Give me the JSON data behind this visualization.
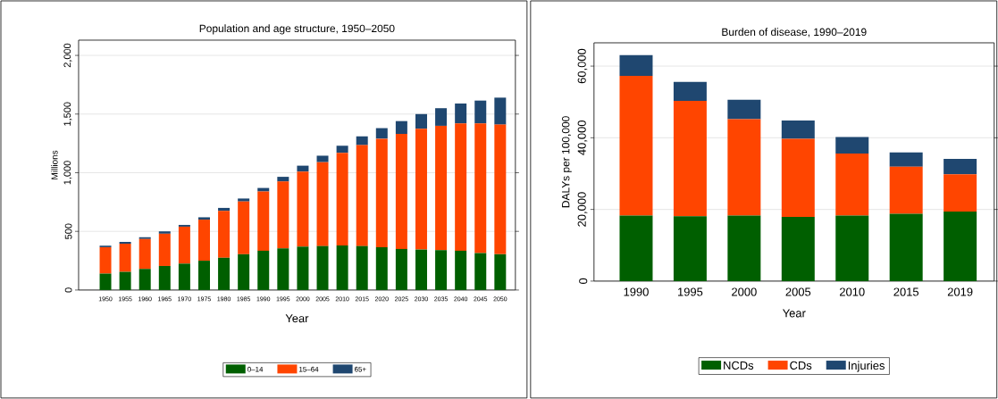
{
  "chart_data": [
    {
      "type": "bar",
      "title": "Population and age structure, 1950–2050",
      "xlabel": "Year",
      "ylabel": "Millions",
      "stacked": true,
      "grid": "y",
      "legend": "bottom",
      "categories": [
        "1950",
        "1955",
        "1960",
        "1965",
        "1970",
        "1975",
        "1980",
        "1985",
        "1990",
        "1995",
        "2000",
        "2005",
        "2010",
        "2015",
        "2020",
        "2025",
        "2030",
        "2035",
        "2040",
        "2045",
        "2050"
      ],
      "ylim": [
        0,
        2130
      ],
      "yticks": [
        0,
        500,
        {
          "value": 1000,
          "label": "1,000"
        },
        {
          "value": 1500,
          "label": "1,500"
        },
        {
          "value": 2000,
          "label": "2,000"
        }
      ],
      "series": [
        {
          "name": "0–14",
          "color": "#005f00",
          "values": [
            140,
            155,
            180,
            205,
            225,
            250,
            275,
            305,
            335,
            355,
            370,
            375,
            380,
            375,
            365,
            350,
            345,
            340,
            335,
            315,
            305
          ]
        },
        {
          "name": "15–64",
          "color": "#ff4500",
          "values": [
            225,
            240,
            255,
            275,
            315,
            350,
            400,
            450,
            505,
            570,
            640,
            715,
            790,
            860,
            925,
            980,
            1030,
            1060,
            1085,
            1105,
            1105
          ]
        },
        {
          "name": "65+",
          "color": "#1f4770",
          "values": [
            13,
            15,
            15,
            20,
            15,
            20,
            25,
            25,
            30,
            40,
            50,
            55,
            60,
            75,
            90,
            110,
            125,
            150,
            170,
            195,
            230
          ]
        }
      ]
    },
    {
      "type": "bar",
      "title": "Burden of disease, 1990–2019",
      "xlabel": "Year",
      "ylabel": "DALYs per 100,000",
      "stacked": true,
      "grid": "y",
      "legend": "bottom",
      "categories": [
        "1990",
        "1995",
        "2000",
        "2005",
        "2010",
        "2015",
        "2019"
      ],
      "ylim": [
        0,
        66500
      ],
      "yticks": [
        0,
        {
          "value": 20000,
          "label": "20,000"
        },
        {
          "value": 40000,
          "label": "40,000"
        },
        {
          "value": 60000,
          "label": "60,000"
        }
      ],
      "series": [
        {
          "name": "NCDs",
          "color": "#005f00",
          "values": [
            18300,
            18100,
            18300,
            17900,
            18300,
            18800,
            19400
          ]
        },
        {
          "name": "CDs",
          "color": "#ff4500",
          "values": [
            39000,
            32200,
            26900,
            21800,
            17300,
            13100,
            10400
          ]
        },
        {
          "name": "Injuries",
          "color": "#1f4770",
          "values": [
            5800,
            5300,
            5400,
            5100,
            4600,
            4000,
            4300
          ]
        }
      ]
    }
  ]
}
